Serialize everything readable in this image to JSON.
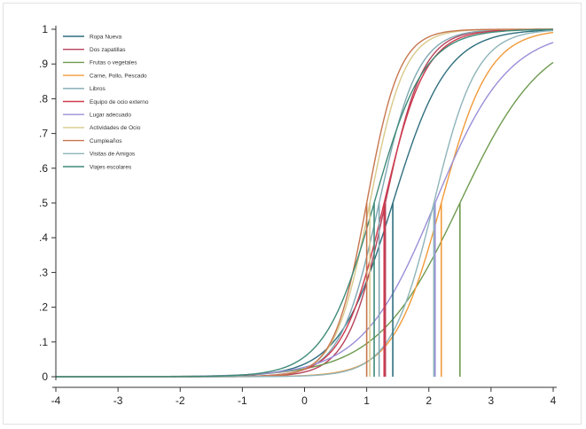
{
  "chart_data": {
    "type": "line",
    "title": "",
    "xlabel": "",
    "ylabel": "",
    "xlim": [
      -4,
      4
    ],
    "ylim": [
      0,
      1
    ],
    "x_ticks": [
      -4,
      -3,
      -2,
      -1,
      0,
      1,
      2,
      3,
      4
    ],
    "x_tick_labels": [
      "-4",
      "-3",
      "-2",
      "-1",
      "0",
      "1",
      "2",
      "3",
      "4"
    ],
    "y_ticks": [
      0,
      0.1,
      0.2,
      0.3,
      0.4,
      0.5,
      0.6,
      0.7,
      0.8,
      0.9,
      1
    ],
    "y_tick_labels": [
      "0",
      ".1",
      ".2",
      ".3",
      ".4",
      ".5",
      ".6",
      ".7",
      ".8",
      ".9",
      "1"
    ],
    "grid": false,
    "legend_position": "top-left",
    "series": [
      {
        "name": "Ropa Nueva",
        "color": "#2f6f7e",
        "midpoint": 1.42,
        "slope": 2.3
      },
      {
        "name": "Dos zapatillas",
        "color": "#b5425a",
        "midpoint": 1.3,
        "slope": 3.3
      },
      {
        "name": "Frutas o vegetales",
        "color": "#6e9a4f",
        "midpoint": 2.5,
        "slope": 1.5
      },
      {
        "name": "Carne, Pollo, Pescado",
        "color": "#f29a3a",
        "midpoint": 2.2,
        "slope": 2.6
      },
      {
        "name": "Libros",
        "color": "#7fa8b3",
        "midpoint": 1.2,
        "slope": 3.2
      },
      {
        "name": "Equipo de ocio externo",
        "color": "#d03a4e",
        "midpoint": 1.28,
        "slope": 3.0
      },
      {
        "name": "Lugar adecuado",
        "color": "#9a8fd8",
        "midpoint": 2.1,
        "slope": 1.7
      },
      {
        "name": "Actividades de Ocio",
        "color": "#d8c98a",
        "midpoint": 1.05,
        "slope": 3.6
      },
      {
        "name": "Cumpleaños",
        "color": "#c7764f",
        "midpoint": 1.0,
        "slope": 3.8
      },
      {
        "name": "Visitas de Amigos",
        "color": "#8eb4ba",
        "midpoint": 2.08,
        "slope": 2.9
      },
      {
        "name": "Viajes escolares",
        "color": "#3f8a78",
        "midpoint": 1.12,
        "slope": 2.5
      }
    ]
  }
}
